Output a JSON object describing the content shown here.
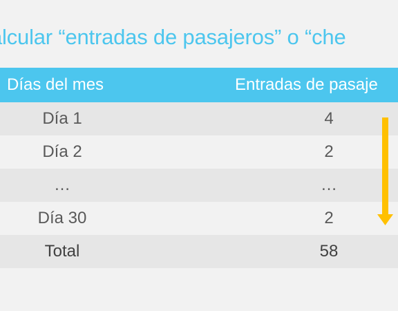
{
  "title": "alcular “entradas de pasajeros” o “che",
  "table": {
    "headers": [
      "Días del mes",
      "Entradas de pasaje"
    ],
    "rows": [
      [
        "Día 1",
        "4"
      ],
      [
        "Día 2",
        "2"
      ],
      [
        "…",
        "…"
      ],
      [
        "Día 30",
        "2"
      ]
    ],
    "total": [
      "Total",
      "58"
    ]
  },
  "colors": {
    "accent": "#4cc6ee",
    "arrow": "#ffc000",
    "row_shaded": "#e6e6e6",
    "row_plain": "#f2f2f2"
  },
  "icons": {
    "arrow": "arrow-down-icon"
  }
}
